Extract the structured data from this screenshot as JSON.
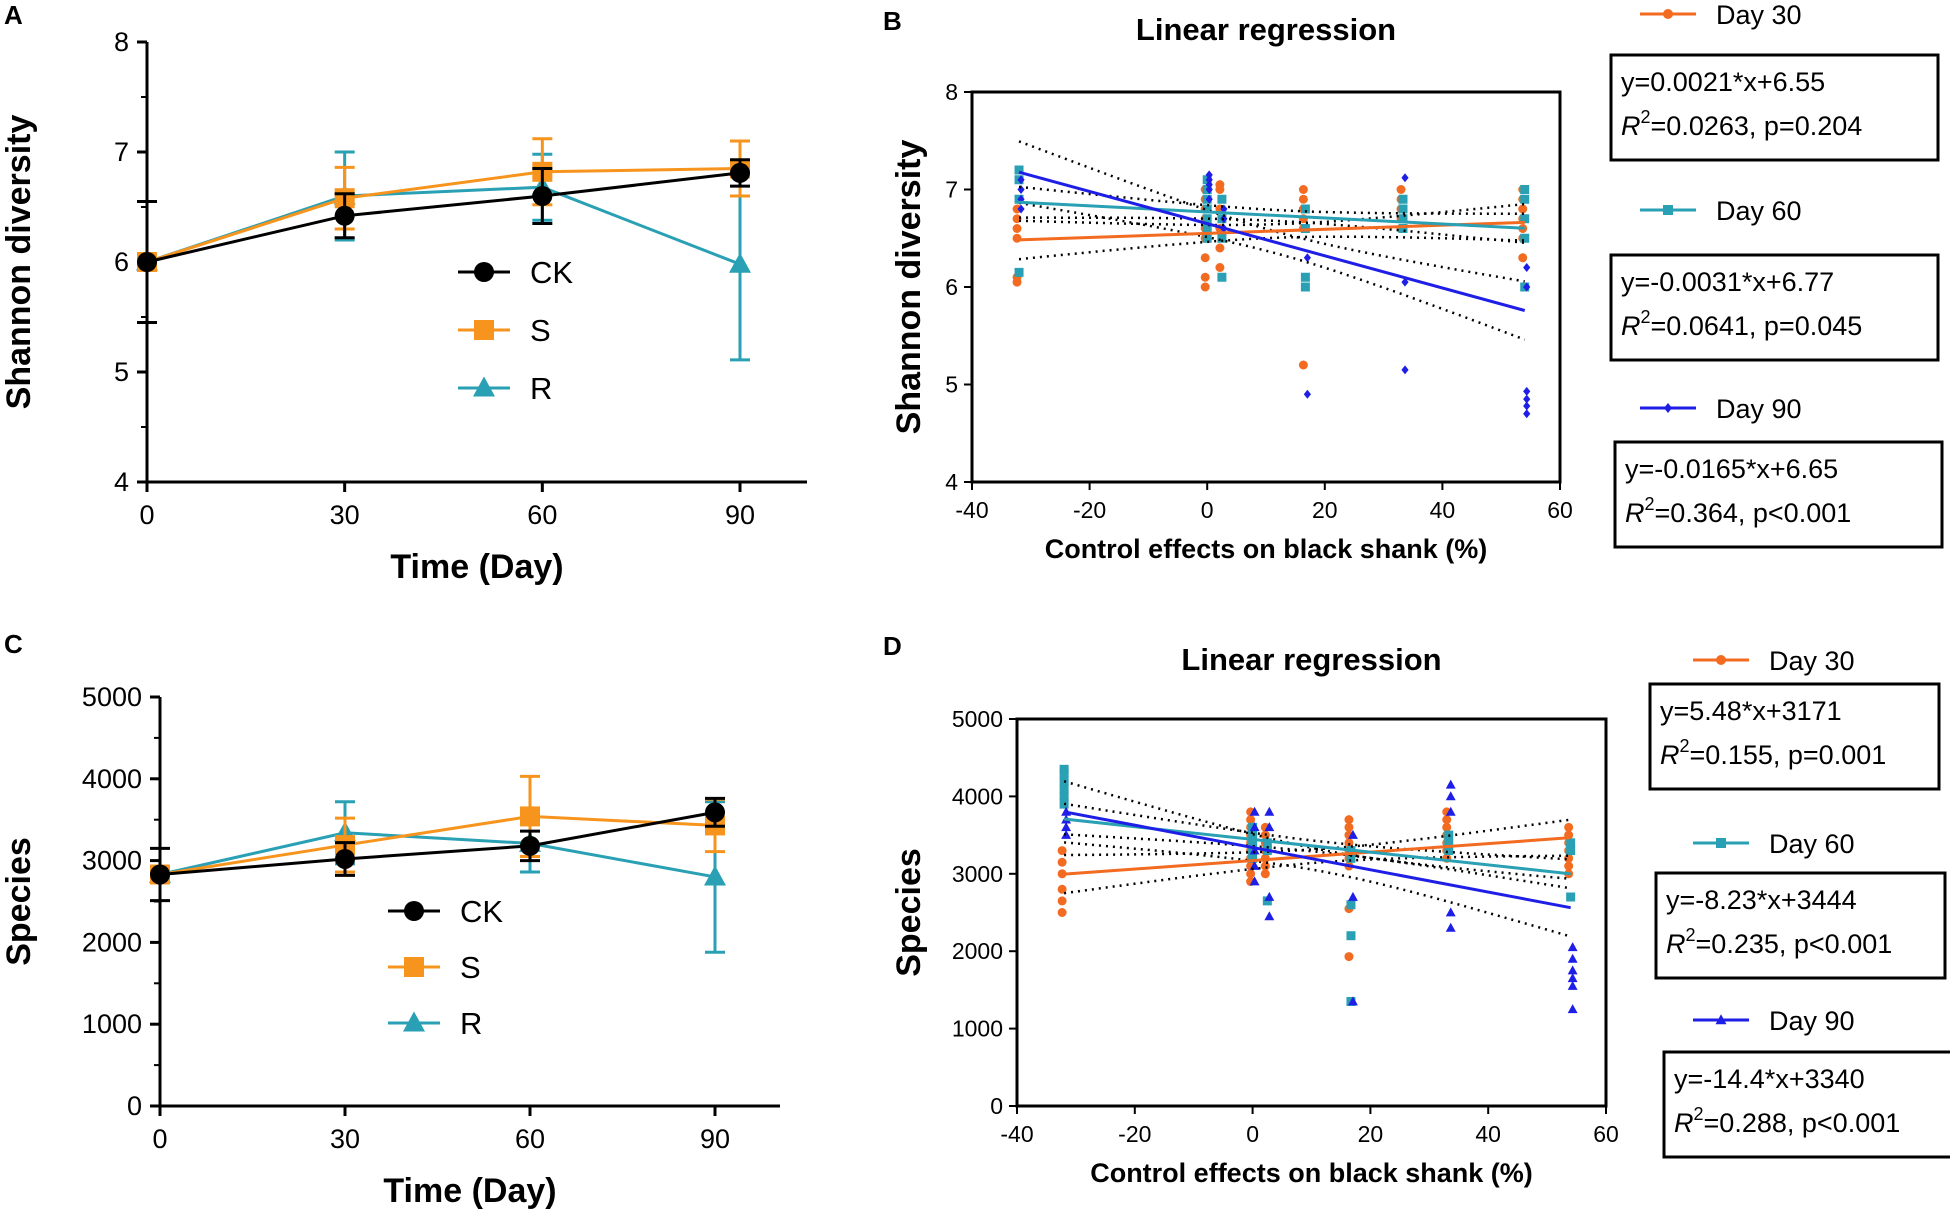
{
  "chart_data": [
    {
      "panel": "A",
      "type": "line",
      "title": "",
      "xlabel": "Time (Day)",
      "ylabel": "Shannon diversity",
      "x": [
        0,
        30,
        60,
        90
      ],
      "xticks": [
        "0",
        "30",
        "60",
        "90"
      ],
      "yticks": [
        "4",
        "5",
        "6",
        "7",
        "8"
      ],
      "ylim": [
        4,
        8
      ],
      "series": [
        {
          "name": "CK",
          "marker": "circle",
          "color": "#000000",
          "values": [
            6.0,
            6.42,
            6.6,
            6.81
          ],
          "err": [
            0.55,
            0.2,
            0.25,
            0.12
          ]
        },
        {
          "name": "S",
          "marker": "square",
          "color": "#F7941D",
          "values": [
            6.0,
            6.58,
            6.82,
            6.85
          ],
          "err": [
            0.0,
            0.28,
            0.3,
            0.25
          ]
        },
        {
          "name": "R",
          "marker": "triangle",
          "color": "#2AA0B4",
          "values": [
            6.0,
            6.6,
            6.68,
            5.98
          ],
          "err": [
            0.0,
            0.4,
            0.3,
            0.87
          ]
        }
      ]
    },
    {
      "panel": "B",
      "type": "scatter",
      "title": "Linear regression",
      "xlabel": "Control effects on black shank (%)",
      "ylabel": "Shannon diversity",
      "xlim": [
        -40,
        60
      ],
      "ylim": [
        4,
        8
      ],
      "xticks": [
        "-40",
        "-20",
        "0",
        "20",
        "40",
        "60"
      ],
      "yticks": [
        "4",
        "5",
        "6",
        "7",
        "8"
      ],
      "x_groups": [
        -32,
        0,
        2.5,
        16.7,
        33.3,
        54
      ],
      "series": [
        {
          "name": "Day 30",
          "color": "#F26B21",
          "marker": "circle",
          "slope": 0.0021,
          "intercept": 6.55,
          "points_y": [
            [
              6.05,
              6.1,
              6.5,
              6.6,
              6.7,
              6.8
            ],
            [
              6.0,
              6.1,
              6.3,
              6.5,
              6.6,
              6.7,
              6.8,
              6.9,
              7.0
            ],
            [
              6.2,
              6.4,
              6.6,
              6.8,
              7.0,
              7.05
            ],
            [
              5.2,
              6.6,
              6.7,
              6.8,
              6.9,
              7.0
            ],
            [
              6.6,
              6.7,
              6.8,
              6.9,
              7.0
            ],
            [
              6.3,
              6.5,
              6.6,
              6.7,
              6.8,
              6.9,
              7.0
            ]
          ]
        },
        {
          "name": "Day 60",
          "color": "#2AA0B4",
          "marker": "square",
          "slope": -0.0031,
          "intercept": 6.77,
          "points_y": [
            [
              6.15,
              6.9,
              7.1,
              7.2
            ],
            [
              6.5,
              6.6,
              6.7,
              6.8,
              6.9,
              7.0,
              7.1
            ],
            [
              6.1,
              6.5,
              6.7,
              6.9
            ],
            [
              6.0,
              6.1,
              6.6,
              6.8
            ],
            [
              6.6,
              6.7,
              6.8,
              6.9
            ],
            [
              6.0,
              6.5,
              6.7,
              6.9,
              7.0
            ]
          ]
        },
        {
          "name": "Day 90",
          "color": "#1E1EE6",
          "marker": "diamond",
          "slope": -0.0165,
          "intercept": 6.65,
          "points_y": [
            [
              6.8,
              6.9,
              7.0,
              7.1
            ],
            [
              6.9,
              7.0,
              7.05,
              7.1,
              7.15
            ],
            [
              6.6,
              6.7,
              6.8
            ],
            [
              4.9,
              6.3
            ],
            [
              5.15,
              6.05,
              7.12
            ],
            [
              4.7,
              4.78,
              4.85,
              4.93,
              6.0,
              6.2
            ]
          ]
        }
      ],
      "equations": [
        {
          "eq": "y=0.0021*x+6.55",
          "r2": "0.0263",
          "p": "p=0.204"
        },
        {
          "eq": "y=-0.0031*x+6.77",
          "r2": "0.0641",
          "p": "p=0.045"
        },
        {
          "eq": "y=-0.0165*x+6.65",
          "r2": "0.364",
          "p": "p<0.001"
        }
      ]
    },
    {
      "panel": "C",
      "type": "line",
      "title": "",
      "xlabel": "Time (Day)",
      "ylabel": "Species",
      "x": [
        0,
        30,
        60,
        90
      ],
      "xticks": [
        "0",
        "30",
        "60",
        "90"
      ],
      "yticks": [
        "0",
        "1000",
        "2000",
        "3000",
        "4000",
        "5000"
      ],
      "ylim": [
        0,
        5000
      ],
      "series": [
        {
          "name": "CK",
          "marker": "circle",
          "color": "#000000",
          "values": [
            2830,
            3020,
            3180,
            3590
          ],
          "err": [
            320,
            200,
            180,
            170
          ]
        },
        {
          "name": "S",
          "marker": "square",
          "color": "#F7941D",
          "values": [
            2830,
            3190,
            3540,
            3430
          ],
          "err": [
            0,
            330,
            490,
            320
          ]
        },
        {
          "name": "R",
          "marker": "triangle",
          "color": "#2AA0B4",
          "values": [
            2830,
            3340,
            3210,
            2800
          ],
          "err": [
            0,
            380,
            350,
            920
          ]
        }
      ]
    },
    {
      "panel": "D",
      "type": "scatter",
      "title": "Linear regression",
      "xlabel": "Control effects on black shank (%)",
      "ylabel": "Species",
      "xlim": [
        -40,
        60
      ],
      "ylim": [
        0,
        5000
      ],
      "xticks": [
        "-40",
        "-20",
        "0",
        "20",
        "40",
        "60"
      ],
      "yticks": [
        "0",
        "1000",
        "2000",
        "3000",
        "4000",
        "5000"
      ],
      "x_groups": [
        -32,
        0,
        2.5,
        16.7,
        33.3,
        54
      ],
      "series": [
        {
          "name": "Day 30",
          "color": "#F26B21",
          "marker": "circle",
          "slope": 5.48,
          "intercept": 3171,
          "points_y": [
            [
              2500,
              2650,
              2800,
              3000,
              3150,
              3300
            ],
            [
              2900,
              3000,
              3100,
              3200,
              3300,
              3400,
              3500,
              3600,
              3700,
              3800
            ],
            [
              3000,
              3100,
              3200,
              3300,
              3400,
              3500,
              3600
            ],
            [
              1930,
              2550,
              3100,
              3200,
              3300,
              3400,
              3500,
              3600,
              3700
            ],
            [
              3200,
              3300,
              3400,
              3500,
              3600,
              3700,
              3800
            ],
            [
              3000,
              3100,
              3200,
              3300,
              3400,
              3500,
              3600
            ]
          ]
        },
        {
          "name": "Day 60",
          "color": "#2AA0B4",
          "marker": "square",
          "slope": -8.23,
          "intercept": 3444,
          "points_y": [
            [
              3900,
              4000,
              4100,
              4200,
              4300,
              4350
            ],
            [
              3200,
              3300,
              3400,
              3500,
              3600
            ],
            [
              2650,
              3300,
              3400
            ],
            [
              1350,
              2200,
              2600,
              3200,
              3300
            ],
            [
              3300,
              3400,
              3500
            ],
            [
              2700,
              3300,
              3400
            ]
          ]
        },
        {
          "name": "Day 90",
          "color": "#1E1EE6",
          "marker": "triangle",
          "slope": -14.4,
          "intercept": 3340,
          "points_y": [
            [
              3500,
              3600,
              3700,
              3800
            ],
            [
              2900,
              3100,
              3300,
              3600,
              3800
            ],
            [
              2450,
              2700,
              3600,
              3800
            ],
            [
              1350,
              2700,
              3500
            ],
            [
              2300,
              2500,
              3800,
              4000,
              4150
            ],
            [
              1250,
              1550,
              1650,
              1750,
              1900,
              2050
            ]
          ]
        }
      ],
      "equations": [
        {
          "eq": "y=5.48*x+3171",
          "r2": "0.155",
          "p": "p=0.001"
        },
        {
          "eq": "y=-8.23*x+3444",
          "r2": "0.235",
          "p": "p<0.001"
        },
        {
          "eq": "y=-14.4*x+3340",
          "r2": "0.288",
          "p": "p<0.001"
        }
      ]
    }
  ],
  "labels": {
    "panelA": "A",
    "panelB": "B",
    "panelC": "C",
    "panelD": "D",
    "r2_prefix": "R",
    "r2_sup": "2",
    "r2_eq": "=",
    "sep": ", "
  }
}
